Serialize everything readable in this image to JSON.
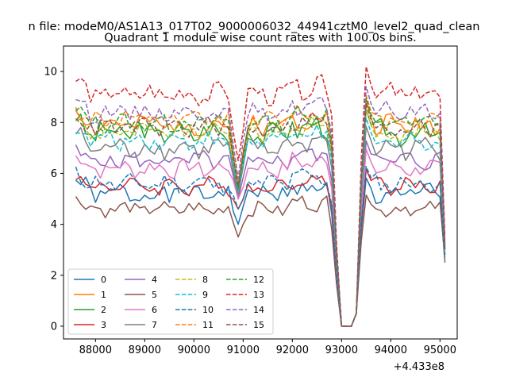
{
  "chart_data": {
    "type": "line",
    "suptitle": "n file: modeM0/AS1A13_017T02_9000006032_44941cztM0_level2_quad_clean",
    "title": "Quadrant 1 module wise count rates with 100.0s bins.",
    "xlabel": "",
    "ylabel": "",
    "x_offset_label": "+4.433e8",
    "xlim": [
      87350,
      95350
    ],
    "ylim": [
      -0.5,
      11.0
    ],
    "x_ticks": [
      88000,
      89000,
      90000,
      91000,
      92000,
      93000,
      94000,
      95000
    ],
    "x_tick_labels": [
      "88000",
      "89000",
      "90000",
      "91000",
      "92000",
      "93000",
      "94000",
      "95000"
    ],
    "y_ticks": [
      0,
      2,
      4,
      6,
      8,
      10
    ],
    "y_tick_labels": [
      "0",
      "2",
      "4",
      "6",
      "8",
      "10"
    ],
    "x_start": 87600,
    "x_step": 100,
    "gap": {
      "low_start": 92950,
      "low_end": 93250,
      "low_value": 0.0
    },
    "legend_placement": "lower-left",
    "grid": false,
    "series": [
      {
        "name": "0",
        "color": "#1f77b4",
        "dash": "solid",
        "base": 5.2,
        "spread": 0.35,
        "dip": 4.0,
        "end": 2.5
      },
      {
        "name": "1",
        "color": "#ff7f0e",
        "dash": "solid",
        "base": 7.9,
        "spread": 0.35,
        "dip": 5.0,
        "end": 3.0
      },
      {
        "name": "2",
        "color": "#2ca02c",
        "dash": "solid",
        "base": 7.6,
        "spread": 0.4,
        "dip": 5.2,
        "end": 3.0
      },
      {
        "name": "3",
        "color": "#d62728",
        "dash": "solid",
        "base": 5.5,
        "spread": 0.3,
        "dip": 4.6,
        "end": 3.0
      },
      {
        "name": "4",
        "color": "#9467bd",
        "dash": "solid",
        "base": 6.5,
        "spread": 0.3,
        "dip": 5.0,
        "end": 2.6
      },
      {
        "name": "5",
        "color": "#8c564b",
        "dash": "solid",
        "base": 4.6,
        "spread": 0.25,
        "dip": 3.5,
        "end": 2.7
      },
      {
        "name": "6",
        "color": "#e377c2",
        "dash": "solid",
        "base": 6.2,
        "spread": 0.3,
        "dip": 5.0,
        "end": 2.8
      },
      {
        "name": "7",
        "color": "#7f7f7f",
        "dash": "solid",
        "base": 7.0,
        "spread": 0.35,
        "dip": 5.2,
        "end": 2.5
      },
      {
        "name": "8",
        "color": "#bcbd22",
        "dash": "dashed",
        "base": 7.6,
        "spread": 0.3,
        "dip": 5.4,
        "end": 3.0
      },
      {
        "name": "9",
        "color": "#17becf",
        "dash": "dashed",
        "base": 7.3,
        "spread": 0.3,
        "dip": 5.3,
        "end": 3.0
      },
      {
        "name": "10",
        "color": "#1f77b4",
        "dash": "dashed",
        "base": 5.6,
        "spread": 0.3,
        "dip": 4.6,
        "end": 2.8
      },
      {
        "name": "11",
        "color": "#ff7f0e",
        "dash": "dashed",
        "base": 8.1,
        "spread": 0.3,
        "dip": 5.6,
        "end": 3.3
      },
      {
        "name": "12",
        "color": "#2ca02c",
        "dash": "dashed",
        "base": 8.0,
        "spread": 0.3,
        "dip": 5.4,
        "end": 3.2
      },
      {
        "name": "13",
        "color": "#d62728",
        "dash": "dashed",
        "base": 9.1,
        "spread": 0.35,
        "dip": 6.5,
        "end": 3.5
      },
      {
        "name": "14",
        "color": "#9467bd",
        "dash": "dashed",
        "base": 8.4,
        "spread": 0.3,
        "dip": 5.8,
        "end": 3.2
      },
      {
        "name": "15",
        "color": "#8c564b",
        "dash": "dashed",
        "base": 7.8,
        "spread": 0.3,
        "dip": 5.5,
        "end": 3.0
      }
    ]
  }
}
